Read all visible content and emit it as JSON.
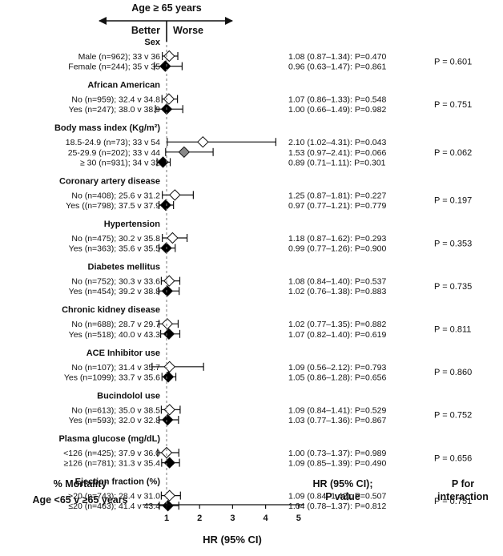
{
  "chart_data": {
    "type": "forest",
    "direction": {
      "title": "Age ≥ 65 years",
      "better": "Better",
      "worse": "Worse"
    },
    "xlabel": "HR  (95% CI)",
    "xlim": [
      0,
      5
    ],
    "xticks": [
      "1",
      "2",
      "3",
      "4",
      "5"
    ],
    "reference_line": 1,
    "left_footer": [
      "% Mortality",
      "Age <65 v ≥65 years"
    ],
    "hr_header": [
      "HR (95% CI);",
      "P value"
    ],
    "pint_header": [
      "P for",
      "interaction"
    ],
    "groups": [
      {
        "name": "Sex",
        "p_interaction": "P = 0.601",
        "rows": [
          {
            "label": "Male (n=962); 33 v 36",
            "hr": 1.08,
            "lo": 0.87,
            "hi": 1.34,
            "text": "1.08 (0.87–1.34): P=0.470",
            "marker": "open"
          },
          {
            "label": "Female (n=244); 35 v 35",
            "hr": 0.96,
            "lo": 0.63,
            "hi": 1.47,
            "text": "0.96 (0.63–1.47): P=0.861",
            "marker": "filled"
          }
        ]
      },
      {
        "name": "African American",
        "p_interaction": "P = 0.751",
        "rows": [
          {
            "label": "No (n=959); 32.4 v 34.8",
            "hr": 1.07,
            "lo": 0.86,
            "hi": 1.33,
            "text": "1.07 (0.86–1.33): P=0.548",
            "marker": "open"
          },
          {
            "label": "Yes (n=247); 38.0 v 38.9",
            "hr": 1.0,
            "lo": 0.66,
            "hi": 1.49,
            "text": "1.00 (0.66–1.49): P=0.982",
            "marker": "filled"
          }
        ]
      },
      {
        "name": "Body mass index (Kg/m²)",
        "p_interaction": "P = 0.062",
        "rows": [
          {
            "label": "18.5-24.9 (n=73); 33 v 54",
            "hr": 2.1,
            "lo": 1.02,
            "hi": 4.31,
            "text": "2.10 (1.02–4.31): P=0.043",
            "marker": "open"
          },
          {
            "label": "25-29.9 (n=202); 33 v 44",
            "hr": 1.53,
            "lo": 0.97,
            "hi": 2.41,
            "text": "1.53 (0.97–2.41): P=0.066",
            "marker": "gray"
          },
          {
            "label": "≥ 30 (n=931); 34 v 32",
            "hr": 0.89,
            "lo": 0.71,
            "hi": 1.11,
            "text": "0.89 (0.71–1.11): P=0.301",
            "marker": "filled"
          }
        ]
      },
      {
        "name": "Coronary artery disease",
        "p_interaction": "P = 0.197",
        "rows": [
          {
            "label": "No (n=408); 25.6 v 31.2",
            "hr": 1.25,
            "lo": 0.87,
            "hi": 1.81,
            "text": "1.25 (0.87–1.81): P=0.227",
            "marker": "open"
          },
          {
            "label": "Yes ((n=798); 37.5 v 37.9",
            "hr": 0.97,
            "lo": 0.77,
            "hi": 1.21,
            "text": "0.97 (0.77–1.21): P=0.779",
            "marker": "filled"
          }
        ]
      },
      {
        "name": "Hypertension",
        "p_interaction": "P = 0.353",
        "rows": [
          {
            "label": "No (n=475); 30.2 v 35.8",
            "hr": 1.18,
            "lo": 0.87,
            "hi": 1.62,
            "text": "1.18 (0.87–1.62): P=0.293",
            "marker": "open"
          },
          {
            "label": "Yes (n=363); 35.6 v 35.5",
            "hr": 0.99,
            "lo": 0.77,
            "hi": 1.26,
            "text": "0.99 (0.77–1.26): P=0.900",
            "marker": "filled"
          }
        ]
      },
      {
        "name": "Diabetes mellitus",
        "p_interaction": "P = 0.735",
        "rows": [
          {
            "label": "No (n=752); 30.3 v 33.6",
            "hr": 1.08,
            "lo": 0.84,
            "hi": 1.4,
            "text": "1.08 (0.84–1.40): P=0.537",
            "marker": "open"
          },
          {
            "label": "Yes (n=454); 39.2 v 38.8",
            "hr": 1.02,
            "lo": 0.76,
            "hi": 1.38,
            "text": "1.02 (0.76–1.38): P=0.883",
            "marker": "filled"
          }
        ]
      },
      {
        "name": "Chronic kidney disease",
        "p_interaction": "P = 0.811",
        "rows": [
          {
            "label": "No (n=688); 28.7 v 29.7",
            "hr": 1.02,
            "lo": 0.77,
            "hi": 1.35,
            "text": "1.02 (0.77–1.35): P=0.882",
            "marker": "open"
          },
          {
            "label": "Yes (n=518); 40.0 v 43.3",
            "hr": 1.07,
            "lo": 0.82,
            "hi": 1.4,
            "text": "1.07 (0.82–1.40): P=0.619",
            "marker": "filled"
          }
        ]
      },
      {
        "name": "ACE Inhibitor use",
        "p_interaction": "P = 0.860",
        "rows": [
          {
            "label": "No (n=107); 31.4 v 35.7",
            "hr": 1.09,
            "lo": 0.56,
            "hi": 2.12,
            "text": "1.09 (0.56–2.12): P=0.793",
            "marker": "open"
          },
          {
            "label": "Yes (n=1099); 33.7 v 35.6",
            "hr": 1.05,
            "lo": 0.86,
            "hi": 1.28,
            "text": "1.05 (0.86–1.28): P=0.656",
            "marker": "filled"
          }
        ]
      },
      {
        "name": "Bucindolol use",
        "p_interaction": "P = 0.752",
        "rows": [
          {
            "label": "No (n=613); 35.0 v 38.5",
            "hr": 1.09,
            "lo": 0.84,
            "hi": 1.41,
            "text": "1.09 (0.84–1.41): P=0.529",
            "marker": "open"
          },
          {
            "label": "Yes (n=593); 32.0 v 32.8",
            "hr": 1.03,
            "lo": 0.77,
            "hi": 1.36,
            "text": "1.03 (0.77–1.36): P=0.867",
            "marker": "filled"
          }
        ]
      },
      {
        "name": "Plasma glucose (mg/dL)",
        "p_interaction": "P = 0.656",
        "rows": [
          {
            "label": "<126 (n=425); 37.9 v 36.0",
            "hr": 1.0,
            "lo": 0.73,
            "hi": 1.37,
            "text": "1.00 (0.73–1.37): P=0.989",
            "marker": "open"
          },
          {
            "label": "≥126 (n=781); 31.3 v 35.4",
            "hr": 1.09,
            "lo": 0.85,
            "hi": 1.39,
            "text": "1.09 (0.85–1.39): P=0.490",
            "marker": "filled"
          }
        ]
      },
      {
        "name": "Ejection fraction (%)",
        "p_interaction": "P = 0.751",
        "rows": [
          {
            "label": ">20 (n=743); 28.4 v 31.0",
            "hr": 1.09,
            "lo": 0.84,
            "hi": 1.42,
            "text": "1.09 (0.84–1.42): P=0.507",
            "marker": "open"
          },
          {
            "label": "≤20 (n=463); 41.4 v 43.4",
            "hr": 1.04,
            "lo": 0.78,
            "hi": 1.37,
            "text": "1.04 (0.78–1.37): P=0.812",
            "marker": "filled"
          }
        ]
      }
    ]
  }
}
